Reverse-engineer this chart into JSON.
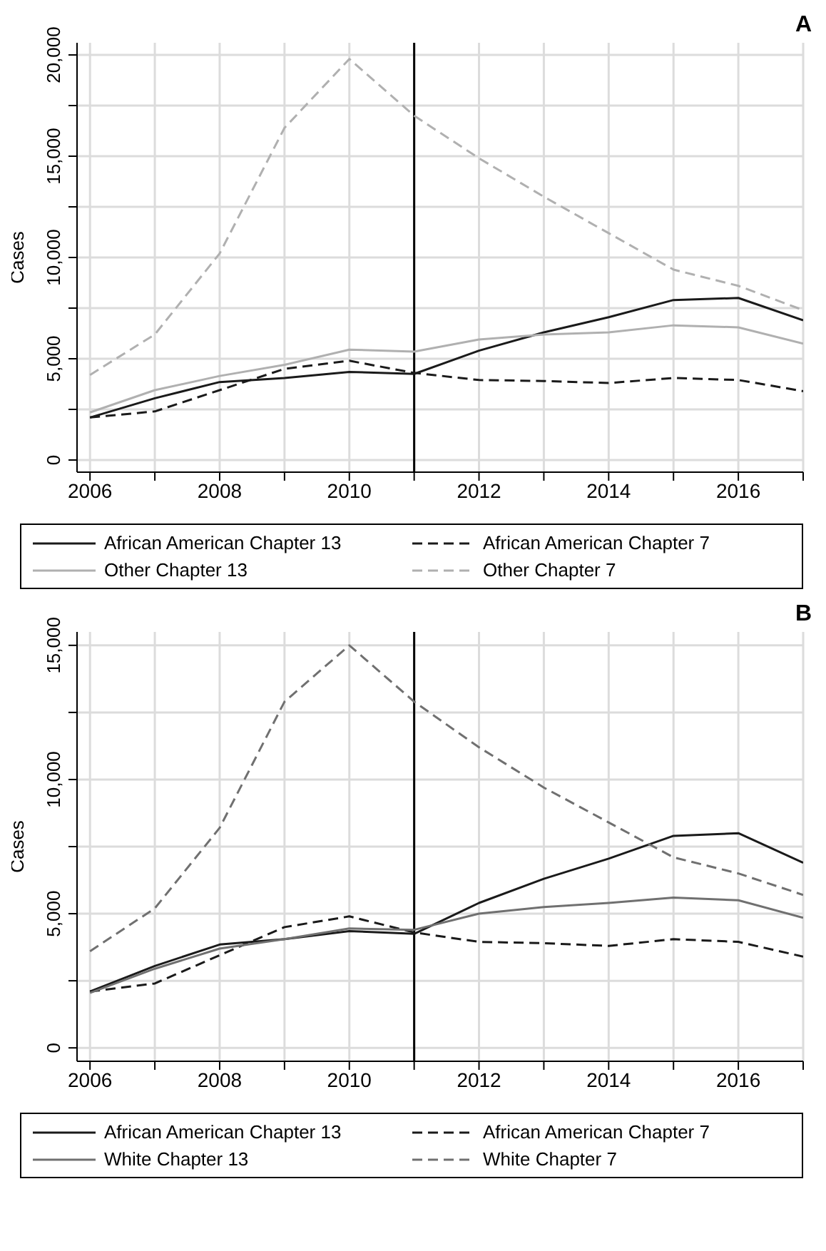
{
  "chart_data": [
    {
      "type": "line",
      "title": "A",
      "ylabel": "Cases",
      "x": [
        2006,
        2007,
        2008,
        2009,
        2010,
        2011,
        2012,
        2013,
        2014,
        2015,
        2016,
        2017
      ],
      "xlim": [
        2005.8,
        2017
      ],
      "xticks": [
        2006,
        {
          "value": 2007,
          "label": null
        },
        2008,
        {
          "value": 2009,
          "label": null
        },
        2010,
        {
          "value": 2011,
          "label": null
        },
        2012,
        {
          "value": 2013,
          "label": null
        },
        2014,
        {
          "value": 2015,
          "label": null
        },
        2016,
        {
          "value": 2017,
          "label": null
        }
      ],
      "ylim": [
        -600,
        20600
      ],
      "yticks": [
        0,
        {
          "value": 2500,
          "label": null
        },
        {
          "value": 5000,
          "label": "5,000"
        },
        {
          "value": 7500,
          "label": null
        },
        {
          "value": 10000,
          "label": "10,000"
        },
        {
          "value": 12500,
          "label": null
        },
        {
          "value": 15000,
          "label": "15,000"
        },
        {
          "value": 17500,
          "label": null
        },
        {
          "value": 20000,
          "label": "20,000"
        }
      ],
      "grid": true,
      "legend": "bottom",
      "marker": "none",
      "ref_lines": [
        {
          "axis": "x",
          "value": 2011,
          "color": "#000000",
          "line_style": "solid"
        }
      ],
      "series": [
        {
          "name": "African American Chapter 13",
          "color": "#1a1a1a",
          "line_style": "solid",
          "values": [
            2100,
            3050,
            3850,
            4050,
            4350,
            4250,
            5400,
            6300,
            7050,
            7900,
            8000,
            6900
          ]
        },
        {
          "name": "African American Chapter 7",
          "color": "#1a1a1a",
          "line_style": "dashed",
          "values": [
            2100,
            2400,
            3450,
            4500,
            4900,
            4300,
            3950,
            3900,
            3800,
            4050,
            3950,
            3400
          ]
        },
        {
          "name": "Other Chapter 13",
          "color": "#b0b0b0",
          "line_style": "solid",
          "values": [
            2350,
            3450,
            4150,
            4700,
            5450,
            5350,
            5950,
            6200,
            6300,
            6650,
            6550,
            5750
          ]
        },
        {
          "name": "Other Chapter 7",
          "color": "#b0b0b0",
          "line_style": "dashed",
          "values": [
            4200,
            6200,
            10200,
            16400,
            19800,
            17000,
            14900,
            13000,
            11200,
            9400,
            8600,
            7400
          ]
        }
      ]
    },
    {
      "type": "line",
      "title": "B",
      "ylabel": "Cases",
      "x": [
        2006,
        2007,
        2008,
        2009,
        2010,
        2011,
        2012,
        2013,
        2014,
        2015,
        2016,
        2017
      ],
      "xlim": [
        2005.8,
        2017
      ],
      "xticks": [
        2006,
        {
          "value": 2007,
          "label": null
        },
        2008,
        {
          "value": 2009,
          "label": null
        },
        2010,
        {
          "value": 2011,
          "label": null
        },
        2012,
        {
          "value": 2013,
          "label": null
        },
        2014,
        {
          "value": 2015,
          "label": null
        },
        2016,
        {
          "value": 2017,
          "label": null
        }
      ],
      "ylim": [
        -500,
        15500
      ],
      "yticks": [
        0,
        {
          "value": 2500,
          "label": null
        },
        {
          "value": 5000,
          "label": "5,000"
        },
        {
          "value": 7500,
          "label": null
        },
        {
          "value": 10000,
          "label": "10,000"
        },
        {
          "value": 12500,
          "label": null
        },
        {
          "value": 15000,
          "label": "15,000"
        }
      ],
      "grid": true,
      "legend": "bottom",
      "marker": "none",
      "ref_lines": [
        {
          "axis": "x",
          "value": 2011,
          "color": "#000000",
          "line_style": "solid"
        }
      ],
      "series": [
        {
          "name": "African American Chapter 13",
          "color": "#1a1a1a",
          "line_style": "solid",
          "values": [
            2100,
            3050,
            3850,
            4050,
            4350,
            4250,
            5400,
            6300,
            7050,
            7900,
            8000,
            6900
          ]
        },
        {
          "name": "African American Chapter 7",
          "color": "#1a1a1a",
          "line_style": "dashed",
          "values": [
            2100,
            2400,
            3450,
            4500,
            4900,
            4300,
            3950,
            3900,
            3800,
            4050,
            3950,
            3400
          ]
        },
        {
          "name": "White Chapter 13",
          "color": "#707070",
          "line_style": "solid",
          "values": [
            2050,
            2950,
            3700,
            4050,
            4450,
            4400,
            5000,
            5250,
            5400,
            5600,
            5500,
            4850
          ]
        },
        {
          "name": "White Chapter 7",
          "color": "#707070",
          "line_style": "dashed",
          "values": [
            3600,
            5200,
            8200,
            12900,
            15000,
            12900,
            11200,
            9700,
            8400,
            7100,
            6500,
            5700
          ]
        }
      ]
    }
  ]
}
